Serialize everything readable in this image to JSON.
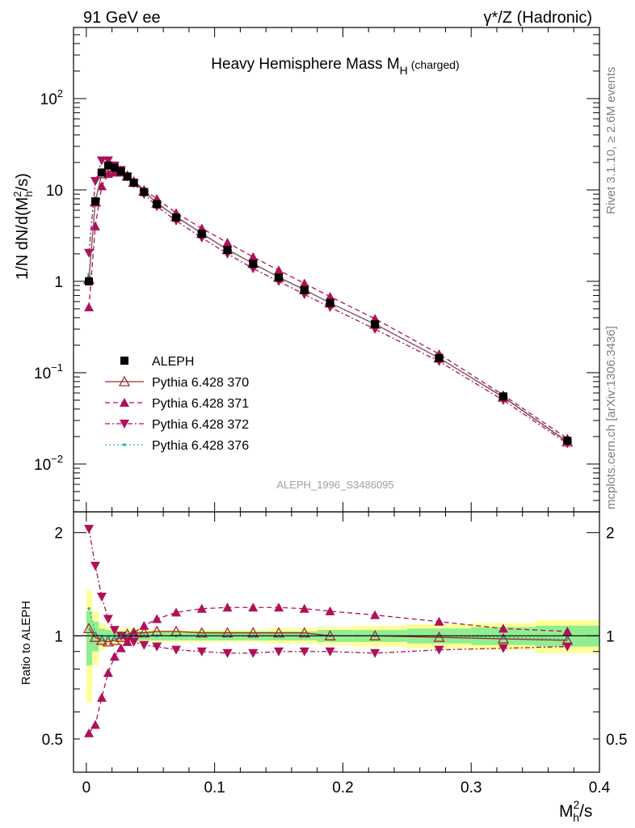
{
  "header": {
    "left": "91 GeV ee",
    "right_prefix": "γ",
    "right_rest": "*/Z (Hadronic)"
  },
  "side": {
    "top": "Rivet 3.1.10, ≥ 2.6M events",
    "bottom": "mcplots.cern.ch [arXiv:1306.3436]"
  },
  "chart_data": {
    "type": "line",
    "title_main": "Heavy Hemisphere Mass M",
    "title_sub": "H",
    "title_suffix": "(charged)",
    "watermark": "ALEPH_1996_S3486095",
    "ylabel_main": "1/N dN/d(M",
    "ylabel_sup": "2",
    "ylabel_sub": "h",
    "ylabel_end": "/s)",
    "ratio_ylabel": "Ratio to ALEPH",
    "xlabel_main": "M",
    "xlabel_sup": "2",
    "xlabel_sub": "h",
    "xlabel_end": "/s",
    "xlim": [
      -0.01,
      0.4
    ],
    "ylim_log": [
      0.003,
      600
    ],
    "ratio_ylim": [
      0.4,
      2.3
    ],
    "x_ticks": [
      "0",
      "0.1",
      "0.2",
      "0.3",
      "0.4"
    ],
    "y_ticks": [
      {
        "base": "10",
        "exp": "2"
      },
      {
        "base": "10",
        "exp": ""
      },
      {
        "base": "1",
        "exp": ""
      },
      {
        "base": "10",
        "exp": "−1"
      },
      {
        "base": "10",
        "exp": "−2"
      }
    ],
    "ratio_ticks": [
      "2",
      "1",
      "0.5"
    ],
    "x": [
      0.002,
      0.007,
      0.012,
      0.017,
      0.022,
      0.027,
      0.032,
      0.037,
      0.045,
      0.055,
      0.07,
      0.09,
      0.11,
      0.13,
      0.15,
      0.17,
      0.19,
      0.225,
      0.275,
      0.325,
      0.375
    ],
    "series": [
      {
        "name": "ALEPH",
        "style": "data",
        "color": "#000000",
        "values": [
          1.0,
          7.5,
          15.5,
          18.5,
          17.5,
          16.0,
          14.0,
          12.0,
          9.5,
          7.0,
          5.0,
          3.3,
          2.2,
          1.55,
          1.1,
          0.8,
          0.58,
          0.34,
          0.145,
          0.055,
          0.018
        ],
        "ratio": [
          1.0,
          1.0,
          1.0,
          1.0,
          1.0,
          1.0,
          1.0,
          1.0,
          1.0,
          1.0,
          1.0,
          1.0,
          1.0,
          1.0,
          1.0,
          1.0,
          1.0,
          1.0,
          1.0,
          1.0,
          1.0
        ]
      },
      {
        "name": "Pythia 6.428 370",
        "style": "solid",
        "marker": "open-up",
        "color": "#a52a2a",
        "values": [
          1.05,
          7.4,
          15.0,
          17.8,
          17.0,
          16.0,
          14.2,
          12.2,
          9.7,
          7.2,
          5.1,
          3.35,
          2.23,
          1.57,
          1.11,
          0.81,
          0.58,
          0.34,
          0.145,
          0.054,
          0.0175
        ],
        "ratio": [
          1.05,
          0.99,
          0.97,
          0.96,
          0.97,
          0.99,
          1.01,
          1.02,
          1.02,
          1.03,
          1.03,
          1.02,
          1.02,
          1.02,
          1.02,
          1.02,
          1.0,
          1.0,
          0.99,
          0.98,
          0.97
        ]
      },
      {
        "name": "Pythia 6.428 371",
        "style": "dashed",
        "marker": "filled-up",
        "color": "#b0105a",
        "values": [
          0.52,
          4.0,
          11.0,
          15.0,
          15.5,
          15.5,
          14.0,
          12.5,
          10.0,
          8.0,
          5.6,
          3.8,
          2.65,
          1.85,
          1.32,
          0.95,
          0.68,
          0.39,
          0.16,
          0.057,
          0.019
        ],
        "ratio": [
          0.52,
          0.55,
          0.66,
          0.78,
          0.87,
          0.92,
          0.96,
          1.02,
          1.07,
          1.12,
          1.17,
          1.2,
          1.21,
          1.21,
          1.21,
          1.2,
          1.18,
          1.15,
          1.1,
          1.05,
          1.03
        ]
      },
      {
        "name": "Pythia 6.428 372",
        "style": "dashdot",
        "marker": "filled-down",
        "color": "#b0105a",
        "values": [
          2.05,
          12.5,
          21.0,
          21.0,
          18.5,
          16.5,
          14.0,
          11.8,
          9.0,
          6.6,
          4.6,
          3.0,
          2.0,
          1.38,
          1.0,
          0.72,
          0.52,
          0.3,
          0.133,
          0.05,
          0.0168
        ],
        "ratio": [
          2.05,
          1.6,
          1.3,
          1.12,
          1.04,
          1.0,
          0.97,
          0.96,
          0.94,
          0.93,
          0.91,
          0.9,
          0.89,
          0.89,
          0.9,
          0.9,
          0.9,
          0.89,
          0.91,
          0.92,
          0.93
        ]
      },
      {
        "name": "Pythia 6.428 376",
        "style": "dotted",
        "marker": "dot",
        "color": "#20b2aa",
        "values": [
          1.2,
          7.6,
          15.4,
          18.4,
          17.4,
          16.0,
          14.1,
          12.1,
          9.6,
          7.1,
          5.05,
          3.32,
          2.21,
          1.56,
          1.1,
          0.8,
          0.58,
          0.34,
          0.145,
          0.055,
          0.018
        ],
        "ratio": [
          1.2,
          1.02,
          0.99,
          0.99,
          0.99,
          1.0,
          1.0,
          1.0,
          1.0,
          1.0,
          1.0,
          1.0,
          1.0,
          1.0,
          1.0,
          1.0,
          1.0,
          1.0,
          1.0,
          0.99,
          0.98
        ]
      }
    ],
    "bands": {
      "inner_color": "#90ee90",
      "outer_color": "#ffff99",
      "inner_half": [
        0.18,
        0.1,
        0.05,
        0.04,
        0.04,
        0.03,
        0.03,
        0.03,
        0.03,
        0.03,
        0.03,
        0.03,
        0.03,
        0.03,
        0.03,
        0.03,
        0.04,
        0.04,
        0.05,
        0.06,
        0.07
      ],
      "outer_half": [
        0.36,
        0.18,
        0.09,
        0.06,
        0.05,
        0.05,
        0.05,
        0.05,
        0.04,
        0.04,
        0.04,
        0.04,
        0.04,
        0.04,
        0.05,
        0.05,
        0.06,
        0.07,
        0.08,
        0.09,
        0.11
      ]
    }
  }
}
